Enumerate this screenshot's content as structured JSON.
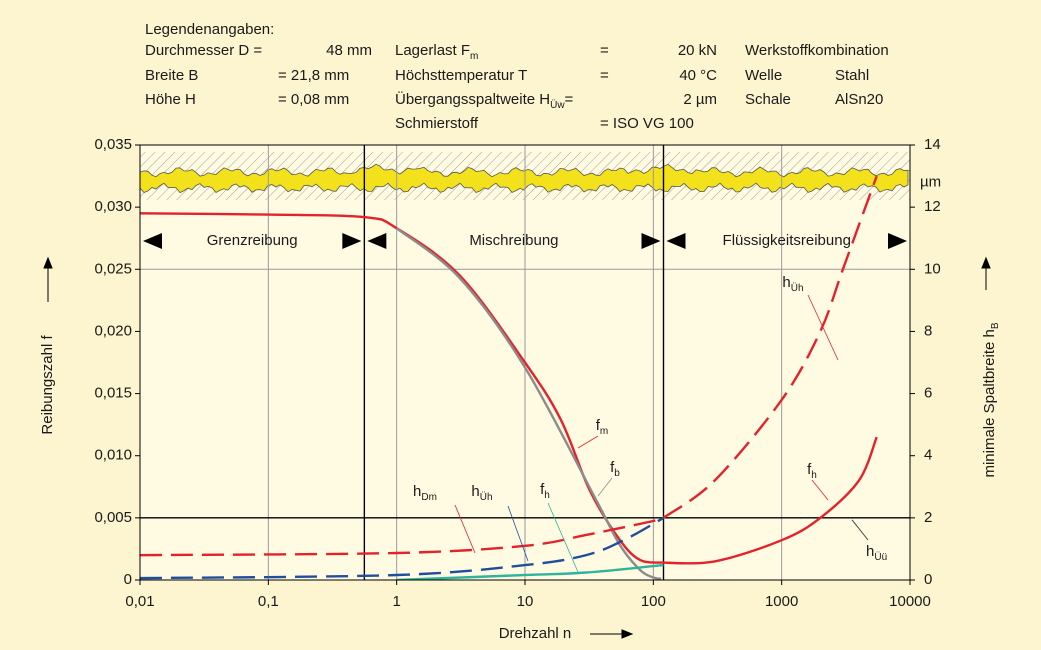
{
  "legend": {
    "title": "Legendenangaben:",
    "rows": [
      [
        "Durchmesser D =",
        "48 mm",
        {
          "text": "Lagerlast F",
          "sub": "m"
        },
        "=",
        "20 kN",
        "Werkstoffkombination"
      ],
      [
        "Breite B",
        "= 21,8 mm",
        "Höchsttemperatur T",
        "=",
        "40 °C",
        "Welle",
        "Stahl"
      ],
      [
        "Höhe H",
        "= 0,08 mm",
        {
          "text": "Übergangsspaltweite H",
          "sub": "Üw",
          "tail": "="
        },
        "2 µm",
        "Schale",
        "AlSn20"
      ],
      [
        "Schmierstoff",
        "= ISO VG 100"
      ]
    ]
  },
  "chart_data": {
    "type": "line",
    "x_label": "Drehzahl n",
    "y_label": "Reibungszahl f",
    "y2_label": {
      "text": "minimale Spaltbreite h",
      "sub": "B"
    },
    "y2_unit": "µm",
    "x_log": true,
    "xlim": [
      0.01,
      10000
    ],
    "xticks": [
      {
        "value": 0.01,
        "label": "0,01"
      },
      {
        "value": 0.1,
        "label": "0,1"
      },
      1,
      10,
      100,
      1000,
      10000
    ],
    "ylim": [
      0,
      0.035
    ],
    "yticks": [
      0,
      {
        "value": 0.005,
        "label": "0,005"
      },
      {
        "value": 0.01,
        "label": "0,010"
      },
      {
        "value": 0.015,
        "label": "0,015"
      },
      {
        "value": 0.02,
        "label": "0,020"
      },
      {
        "value": 0.025,
        "label": "0,025"
      },
      {
        "value": 0.03,
        "label": "0,030"
      },
      {
        "value": 0.035,
        "label": "0,035"
      }
    ],
    "y2lim": [
      0,
      14
    ],
    "y2ticks": [
      0,
      2,
      4,
      6,
      8,
      10,
      12,
      14
    ],
    "x_grid": true,
    "regimes": [
      {
        "name": "Grenzreibung",
        "from": 0.01,
        "to": 0.56
      },
      {
        "name": "Mischreibung",
        "from": 0.56,
        "to": 120
      },
      {
        "name": "Flüssigkeitsreibung",
        "from": 120,
        "to": 10000
      }
    ],
    "reference_lines": [
      {
        "axis": "y",
        "value": 0.025,
        "color": "#9a9a9a"
      },
      {
        "axis": "y2",
        "value": 2,
        "color": "#000000",
        "label": {
          "text": "h",
          "sub": "Üü"
        }
      }
    ],
    "series": [
      {
        "label": {
          "text": "f",
          "sub": "m"
        },
        "color": "#e3222b",
        "axis": "y",
        "dash": false,
        "x": [
          0.01,
          0.1,
          0.56,
          1,
          3.1,
          10,
          19,
          32,
          55,
          79,
          115
        ],
        "values": [
          0.0295,
          0.0294,
          0.0292,
          0.0283,
          0.0245,
          0.0175,
          0.0129,
          0.0072,
          0.0032,
          0.0016,
          0.0014
        ]
      },
      {
        "label": {
          "text": "f",
          "sub": "b"
        },
        "color": "#8c8c8c",
        "axis": "y",
        "dash": false,
        "x": [
          1,
          3.1,
          10,
          36,
          55,
          79,
          100,
          115
        ],
        "values": [
          0.0283,
          0.0243,
          0.0171,
          0.0064,
          0.0028,
          0.0008,
          0.0002,
          0.0001
        ]
      },
      {
        "label": {
          "text": "f",
          "sub": "h"
        },
        "color": "#2fb39a",
        "axis": "y",
        "dash": false,
        "x": [
          1,
          10,
          30,
          120
        ],
        "values": [
          0,
          0.0004,
          0.0006,
          0.0012
        ]
      },
      {
        "label": {
          "text": "f",
          "sub": "h"
        },
        "color": "#e3222b",
        "axis": "y",
        "dash": false,
        "x": [
          115,
          300,
          1000,
          2000,
          4000,
          5500
        ],
        "values": [
          0.0014,
          0.0015,
          0.0032,
          0.005,
          0.008,
          0.0115
        ]
      },
      {
        "label": {
          "text": "h",
          "sub": "Dm"
        },
        "color": "#e3222b",
        "axis": "y2",
        "dash": true,
        "x": [
          0.01,
          1,
          10,
          30,
          100,
          120
        ],
        "values": [
          0.8,
          0.87,
          1.1,
          1.45,
          1.9,
          2.0
        ]
      },
      {
        "label": {
          "text": "h",
          "sub": "Üh"
        },
        "color": "#1f4e9c",
        "axis": "y2",
        "dash": true,
        "x": [
          0.01,
          1,
          10,
          30,
          60,
          120
        ],
        "values": [
          0.06,
          0.16,
          0.48,
          0.8,
          1.3,
          2.0
        ]
      },
      {
        "label": {
          "text": "h",
          "sub": "Üh"
        },
        "color": "#e3222b",
        "axis": "y2",
        "dash": true,
        "x": [
          120,
          300,
          1000,
          2000,
          3000,
          5500
        ],
        "values": [
          2.0,
          3.2,
          5.8,
          8,
          10,
          13.0
        ]
      }
    ]
  }
}
